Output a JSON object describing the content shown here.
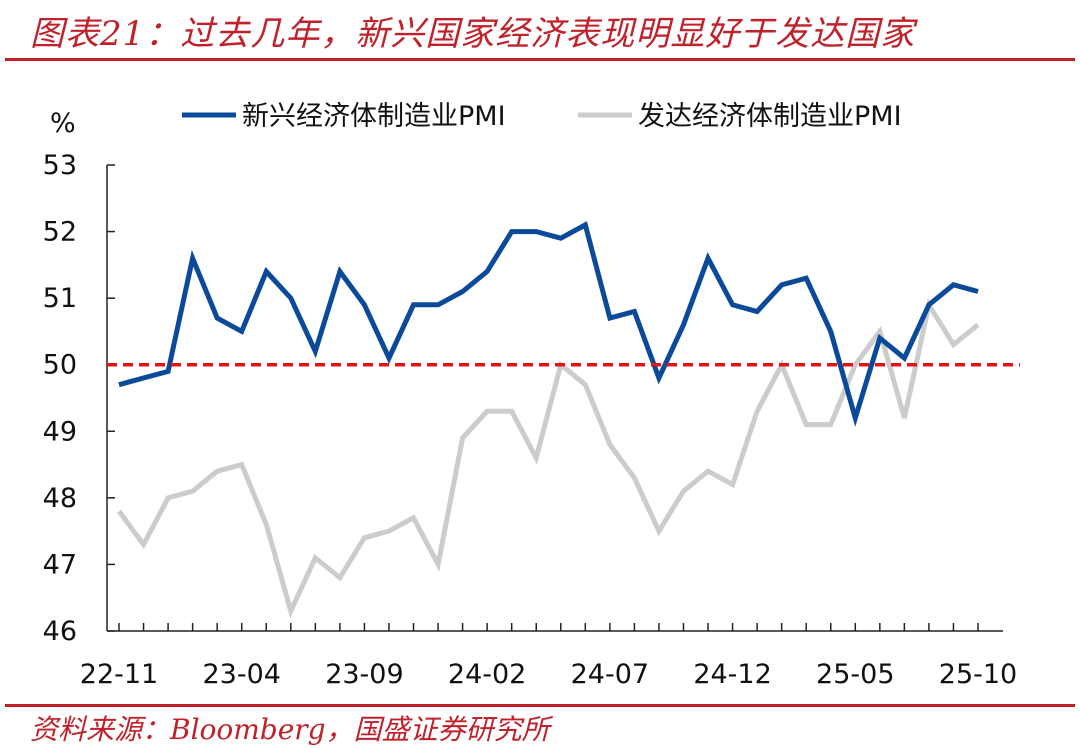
{
  "title": "图表21：过去几年，新兴国家经济表现明显好于发达国家",
  "source": "资料来源：Bloomberg，国盛证券研究所",
  "colors": {
    "accent": "#c0212a",
    "series1": "#0b4a9b",
    "series2": "#cccccc",
    "reference": "#e8121a"
  },
  "chart_data": {
    "type": "line",
    "ylabel": "%",
    "ylim": [
      46,
      53
    ],
    "yticks": [
      46,
      47,
      48,
      49,
      50,
      51,
      52,
      53
    ],
    "x": [
      "22-11",
      "22-12",
      "23-01",
      "23-02",
      "23-03",
      "23-04",
      "23-05",
      "23-06",
      "23-07",
      "23-08",
      "23-09",
      "23-10",
      "23-11",
      "23-12",
      "24-01",
      "24-02",
      "24-03",
      "24-04",
      "24-05",
      "24-06",
      "24-07",
      "24-08",
      "24-09",
      "24-10",
      "24-11",
      "24-12",
      "25-01",
      "25-02",
      "25-03",
      "25-04",
      "25-05",
      "25-06",
      "25-07",
      "25-08",
      "25-09",
      "25-10"
    ],
    "xtick_labels": [
      "22-11",
      "23-04",
      "23-09",
      "24-02",
      "24-07",
      "24-12",
      "25-05",
      "25-10"
    ],
    "reference_line": 50,
    "legend_position": "top",
    "grid": false,
    "series": [
      {
        "name": "新兴经济体制造业PMI",
        "color": "#0b4a9b",
        "values": [
          49.7,
          49.8,
          49.9,
          51.6,
          50.7,
          50.5,
          51.4,
          51.0,
          50.2,
          51.4,
          50.9,
          50.1,
          50.9,
          50.9,
          51.1,
          51.4,
          52.0,
          52.0,
          51.9,
          52.1,
          50.7,
          50.8,
          49.8,
          50.6,
          51.6,
          50.9,
          50.8,
          51.2,
          51.3,
          50.5,
          49.2,
          50.4,
          50.1,
          50.9,
          51.2,
          51.1
        ]
      },
      {
        "name": "发达经济体制造业PMI",
        "color": "#cccccc",
        "values": [
          47.8,
          47.3,
          48.0,
          48.1,
          48.4,
          48.5,
          47.6,
          46.3,
          47.1,
          46.8,
          47.4,
          47.5,
          47.7,
          47.0,
          48.9,
          49.3,
          49.3,
          48.6,
          50.0,
          49.7,
          48.8,
          48.3,
          47.5,
          48.1,
          48.4,
          48.2,
          49.3,
          50.0,
          49.1,
          49.1,
          50.0,
          50.5,
          49.2,
          50.9,
          50.3,
          50.6
        ]
      }
    ]
  }
}
